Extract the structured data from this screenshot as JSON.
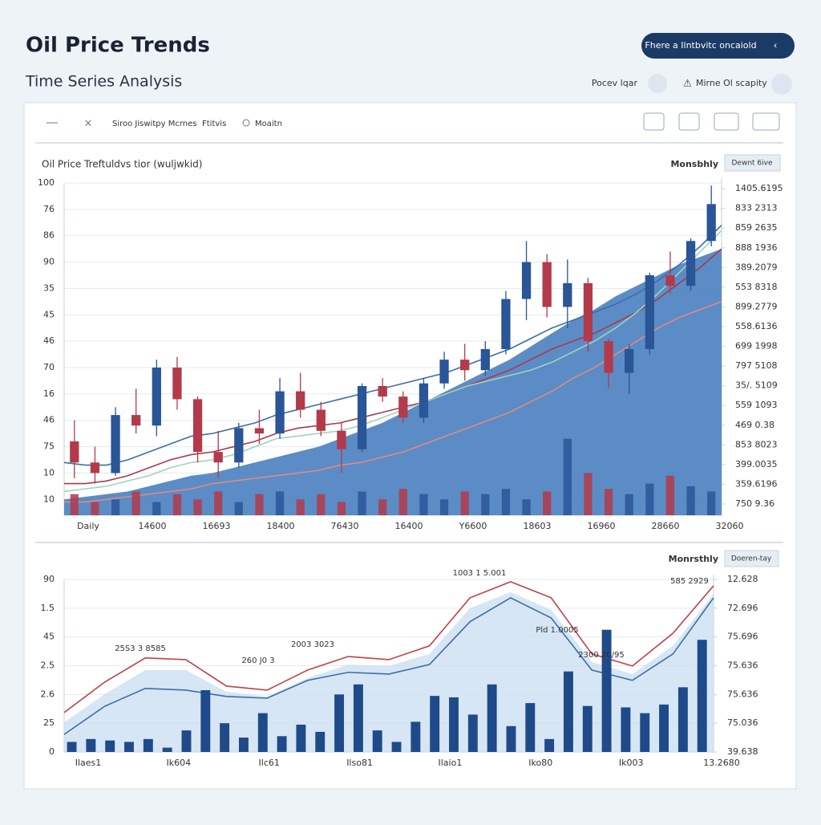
{
  "header": {
    "title": "Oil Price Trends",
    "subtitle": "Time Series Analysis",
    "button": "Fhere a Ilntbvitc oncaiold",
    "links": [
      "Pocev lqar",
      "Mirne Ol scapity"
    ]
  },
  "toolbar": {
    "items": [
      "Siroo Jiswitpy Mcrnes",
      "Ftitvis",
      "Moaitn"
    ]
  },
  "chart_data": [
    {
      "type": "candlestick",
      "title": "Oil Price Treftuldvs tior (wuljwkid)",
      "period": "Monsbhly",
      "button": "Dewnt 6ive",
      "x_labels": [
        "Daily",
        "14600",
        "16693",
        "18400",
        "76430",
        "16400",
        "Y6600",
        "18603",
        "16960",
        "28660",
        "32060"
      ],
      "ylim": [
        0,
        12.6
      ],
      "yticks": [
        {
          "value": 0.6,
          "label": "10"
        },
        {
          "value": 1.6,
          "label": "10"
        },
        {
          "value": 2.6,
          "label": "75"
        },
        {
          "value": 3.6,
          "label": "46"
        },
        {
          "value": 4.6,
          "label": "16"
        },
        {
          "value": 5.6,
          "label": "70"
        },
        {
          "value": 6.6,
          "label": "46"
        },
        {
          "value": 7.6,
          "label": "45"
        },
        {
          "value": 8.6,
          "label": "35"
        },
        {
          "value": 9.6,
          "label": "90"
        },
        {
          "value": 10.6,
          "label": "86"
        },
        {
          "value": 11.6,
          "label": "76"
        },
        {
          "value": 12.6,
          "label": "100"
        }
      ],
      "y2lim": [
        0.43,
        17.29
      ],
      "y2ticks": [
        {
          "value": 1,
          "label": "750 9.36"
        },
        {
          "value": 2,
          "label": "359.6196"
        },
        {
          "value": 3,
          "label": "399.0035"
        },
        {
          "value": 4,
          "label": "853 8023"
        },
        {
          "value": 5,
          "label": "469 0.38"
        },
        {
          "value": 6,
          "label": "559 1093"
        },
        {
          "value": 7,
          "label": "35/. 5109"
        },
        {
          "value": 8,
          "label": "797 5108"
        },
        {
          "value": 9,
          "label": "699 1998"
        },
        {
          "value": 10,
          "label": "558.6136"
        },
        {
          "value": 11,
          "label": "899.2779"
        },
        {
          "value": 12,
          "label": "553 8318"
        },
        {
          "value": 13,
          "label": "389.2079"
        },
        {
          "value": 14,
          "label": "888 1936"
        },
        {
          "value": 15,
          "label": "859 2635"
        },
        {
          "value": 16,
          "label": "833 2313"
        },
        {
          "value": 17,
          "label": "1405.6195"
        }
      ],
      "grid": true,
      "up_color": "#2a5597",
      "down_color": "#b23a4a",
      "ohlc": [
        [
          2.8,
          3.6,
          1.4,
          2.0
        ],
        [
          2.0,
          2.6,
          1.2,
          1.6
        ],
        [
          1.6,
          4.1,
          1.5,
          3.8
        ],
        [
          3.8,
          4.8,
          3.1,
          3.4
        ],
        [
          3.4,
          5.9,
          3.0,
          5.6
        ],
        [
          5.6,
          6.0,
          4.0,
          4.4
        ],
        [
          4.4,
          4.5,
          2.0,
          2.4
        ],
        [
          2.4,
          3.2,
          1.4,
          2.0
        ],
        [
          2.0,
          3.5,
          1.8,
          3.3
        ],
        [
          3.3,
          4.0,
          2.7,
          3.1
        ],
        [
          3.1,
          5.2,
          2.9,
          4.7
        ],
        [
          4.7,
          5.4,
          3.7,
          4.0
        ],
        [
          4.0,
          4.3,
          3.0,
          3.2
        ],
        [
          3.2,
          3.5,
          1.6,
          2.5
        ],
        [
          2.5,
          5.0,
          2.4,
          4.9
        ],
        [
          4.9,
          5.2,
          4.3,
          4.5
        ],
        [
          4.5,
          4.7,
          3.5,
          3.7
        ],
        [
          3.7,
          5.2,
          3.5,
          5.0
        ],
        [
          5.0,
          6.2,
          4.8,
          5.9
        ],
        [
          5.9,
          6.5,
          5.1,
          5.5
        ],
        [
          5.5,
          6.6,
          5.3,
          6.3
        ],
        [
          6.3,
          8.5,
          6.1,
          8.2
        ],
        [
          8.2,
          10.4,
          7.4,
          9.6
        ],
        [
          9.6,
          9.9,
          7.5,
          7.9
        ],
        [
          7.9,
          9.7,
          7.1,
          8.8
        ],
        [
          8.8,
          9.0,
          6.2,
          6.6
        ],
        [
          6.6,
          6.7,
          4.8,
          5.4
        ],
        [
          5.4,
          6.5,
          4.6,
          6.3
        ],
        [
          6.3,
          9.2,
          6.1,
          9.1
        ],
        [
          9.1,
          10.0,
          8.4,
          8.7
        ],
        [
          8.7,
          10.5,
          8.5,
          10.4
        ],
        [
          10.4,
          12.5,
          10.2,
          11.8
        ]
      ],
      "volume": [
        0.8,
        0.5,
        0.6,
        0.9,
        0.5,
        0.8,
        0.6,
        0.9,
        0.5,
        0.8,
        0.9,
        0.6,
        0.8,
        0.5,
        0.9,
        0.6,
        1.0,
        0.8,
        0.6,
        0.9,
        0.8,
        1.0,
        0.6,
        0.9,
        2.9,
        1.6,
        1.0,
        0.8,
        1.2,
        1.5,
        1.1,
        0.9
      ],
      "series": [
        {
          "color": "#4a7fc0",
          "area": true,
          "values": [
            0.6,
            0.7,
            0.8,
            0.9,
            1.1,
            1.3,
            1.5,
            1.6,
            1.8,
            2.0,
            2.2,
            2.4,
            2.6,
            2.9,
            3.2,
            3.5,
            3.9,
            4.3,
            4.7,
            5.1,
            5.5,
            5.9,
            6.4,
            6.9,
            7.4,
            7.8,
            8.3,
            8.7,
            9.1,
            9.5,
            9.8,
            10.1
          ]
        },
        {
          "color": "#3d6ea8",
          "values": [
            2.0,
            1.9,
            1.9,
            2.1,
            2.4,
            2.7,
            3.0,
            3.1,
            3.3,
            3.5,
            3.8,
            4.0,
            4.2,
            4.4,
            4.6,
            4.8,
            5.0,
            5.2,
            5.4,
            5.7,
            6.0,
            6.3,
            6.7,
            7.1,
            7.4,
            7.7,
            8.0,
            8.4,
            8.9,
            9.5,
            10.2,
            11.0
          ]
        },
        {
          "color": "#a83a4c",
          "values": [
            1.2,
            1.2,
            1.3,
            1.5,
            1.8,
            2.1,
            2.3,
            2.4,
            2.6,
            2.8,
            3.1,
            3.3,
            3.4,
            3.5,
            3.7,
            3.9,
            4.1,
            4.3,
            4.6,
            4.9,
            5.2,
            5.5,
            5.9,
            6.3,
            6.6,
            6.9,
            7.3,
            7.7,
            8.2,
            8.8,
            9.4,
            10.1
          ]
        },
        {
          "color": "#9fd3c0",
          "values": [
            0.9,
            1.0,
            1.1,
            1.3,
            1.5,
            1.8,
            2.0,
            2.1,
            2.3,
            2.6,
            2.9,
            3.0,
            3.1,
            3.2,
            3.4,
            3.7,
            4.0,
            4.3,
            4.6,
            4.9,
            5.1,
            5.3,
            5.5,
            5.8,
            6.2,
            6.6,
            7.1,
            7.7,
            8.4,
            9.2,
            10.0,
            10.8
          ]
        },
        {
          "color": "#e08a80",
          "values": [
            0.5,
            0.5,
            0.6,
            0.7,
            0.8,
            0.9,
            1.0,
            1.2,
            1.3,
            1.4,
            1.5,
            1.6,
            1.7,
            1.9,
            2.0,
            2.2,
            2.4,
            2.7,
            3.0,
            3.3,
            3.6,
            3.9,
            4.3,
            4.7,
            5.2,
            5.6,
            6.1,
            6.6,
            7.1,
            7.5,
            7.8,
            8.1
          ]
        }
      ]
    },
    {
      "type": "line",
      "period": "Monrsthly",
      "button": "Doeren-tay",
      "x_labels": [
        "Ilaes1",
        "Ik604",
        "Ilc61",
        "Ilso81",
        "Ilaio1",
        "Iko80",
        "Ik003",
        "13.2680"
      ],
      "ylim": [
        0,
        6
      ],
      "yticks": [
        0,
        {
          "value": 1,
          "label": "25"
        },
        {
          "value": 2,
          "label": "2.6"
        },
        {
          "value": 3,
          "label": "2.5"
        },
        {
          "value": 4,
          "label": "45"
        },
        {
          "value": 5,
          "label": "1.5"
        },
        {
          "value": 6,
          "label": "90"
        }
      ],
      "y2lim": [
        0,
        6
      ],
      "y2ticks": [
        {
          "value": 0,
          "label": "39.638"
        },
        {
          "value": 1,
          "label": "75.036"
        },
        {
          "value": 2,
          "label": "75.636"
        },
        {
          "value": 3,
          "label": "75.636"
        },
        {
          "value": 4,
          "label": "75.696"
        },
        {
          "value": 5,
          "label": "72.696"
        },
        {
          "value": 6,
          "label": "12.628"
        }
      ],
      "grid": true,
      "bars": {
        "color": "#1f4a8a",
        "values": [
          0.35,
          0.45,
          0.4,
          0.35,
          0.45,
          0.15,
          0.75,
          2.15,
          1.0,
          0.5,
          1.35,
          0.55,
          0.95,
          0.7,
          2.0,
          2.35,
          0.75,
          0.35,
          1.05,
          1.95,
          1.9,
          1.3,
          2.35,
          0.9,
          1.7,
          0.45,
          2.8,
          1.6,
          4.25,
          1.55,
          1.35,
          1.65,
          2.25,
          3.9
        ]
      },
      "series": [
        {
          "color": "#c9def0",
          "area": true,
          "values": [
            1.03,
            2.01,
            2.85,
            2.85,
            2.09,
            1.93,
            2.57,
            3.04,
            2.99,
            3.41,
            5.0,
            5.56,
            4.94,
            3.13,
            2.71,
            3.69,
            5.5
          ]
        },
        {
          "color": "#c0404a",
          "values": [
            1.37,
            2.43,
            3.27,
            3.21,
            2.29,
            2.15,
            2.85,
            3.32,
            3.21,
            3.69,
            5.36,
            5.92,
            5.36,
            3.41,
            2.99,
            4.13,
            5.78
          ]
        },
        {
          "color": "#3a6ea8",
          "values": [
            0.61,
            1.59,
            2.21,
            2.15,
            1.93,
            1.87,
            2.49,
            2.77,
            2.71,
            3.04,
            4.53,
            5.36,
            4.66,
            2.85,
            2.49,
            3.41,
            5.36
          ]
        }
      ],
      "annotations": [
        "25S3 3 8585",
        "260 J0 3",
        "2003 3023",
        "1003 1 5.001",
        "Pld 1.0005",
        "2300 20/95",
        "585 2929"
      ]
    }
  ]
}
